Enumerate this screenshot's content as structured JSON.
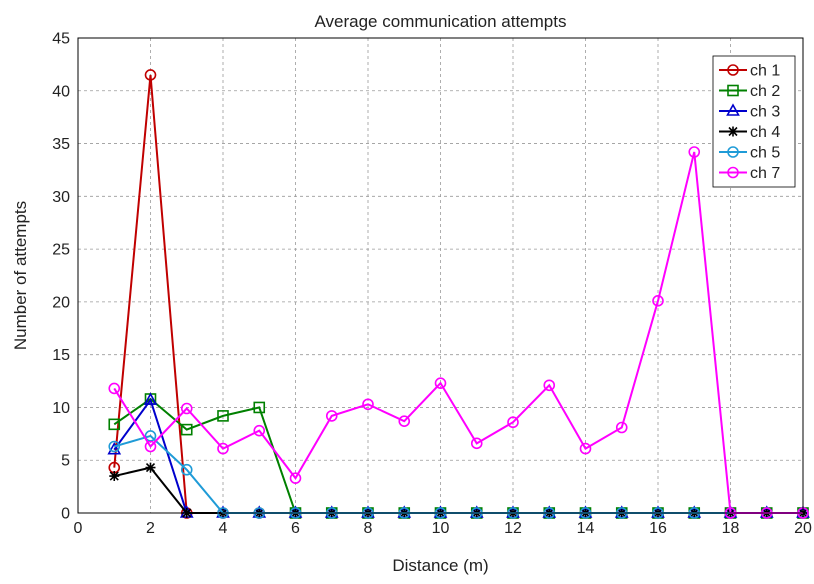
{
  "chart_data": {
    "type": "line",
    "title": "Average communication attempts",
    "xlabel": "Distance (m)",
    "ylabel": "Number of attempts",
    "xlim": [
      0,
      20
    ],
    "ylim": [
      0,
      45
    ],
    "xticks": [
      0,
      2,
      4,
      6,
      8,
      10,
      12,
      14,
      16,
      18,
      20
    ],
    "yticks": [
      0,
      5,
      10,
      15,
      20,
      25,
      30,
      35,
      40,
      45
    ],
    "grid": true,
    "legend_position": "top-right",
    "x": [
      1,
      2,
      3,
      4,
      5,
      6,
      7,
      8,
      9,
      10,
      11,
      12,
      13,
      14,
      15,
      16,
      17,
      18,
      19,
      20
    ],
    "series": [
      {
        "name": "ch 1",
        "color": "#c00000",
        "marker": "circle",
        "values": [
          4.3,
          41.5,
          0,
          0,
          0,
          0,
          0,
          0,
          0,
          0,
          0,
          0,
          0,
          0,
          0,
          0,
          0,
          0,
          0,
          0
        ]
      },
      {
        "name": "ch 2",
        "color": "#008000",
        "marker": "square",
        "values": [
          8.4,
          10.8,
          7.9,
          9.2,
          10.0,
          0,
          0,
          0,
          0,
          0,
          0,
          0,
          0,
          0,
          0,
          0,
          0,
          0,
          0,
          0
        ]
      },
      {
        "name": "ch 3",
        "color": "#0000cc",
        "marker": "triangle",
        "values": [
          6.0,
          10.7,
          0,
          0,
          0,
          0,
          0,
          0,
          0,
          0,
          0,
          0,
          0,
          0,
          0,
          0,
          0,
          0,
          0,
          0
        ]
      },
      {
        "name": "ch 4",
        "color": "#000000",
        "marker": "asterisk",
        "values": [
          3.5,
          4.3,
          0,
          0,
          0,
          0,
          0,
          0,
          0,
          0,
          0,
          0,
          0,
          0,
          0,
          0,
          0,
          0,
          0,
          0
        ]
      },
      {
        "name": "ch 5",
        "color": "#1f9bd7",
        "marker": "circle",
        "values": [
          6.3,
          7.3,
          4.1,
          0,
          0,
          0,
          0,
          0,
          0,
          0,
          0,
          0,
          0,
          0,
          0,
          0,
          0,
          0,
          0,
          0
        ]
      },
      {
        "name": "ch 7",
        "color": "#ff00ff",
        "marker": "circle",
        "values": [
          11.8,
          6.3,
          9.9,
          6.1,
          7.8,
          3.3,
          9.2,
          10.3,
          8.7,
          12.3,
          6.6,
          8.6,
          12.1,
          6.1,
          8.1,
          20.1,
          34.2,
          0,
          0,
          0
        ]
      }
    ]
  }
}
